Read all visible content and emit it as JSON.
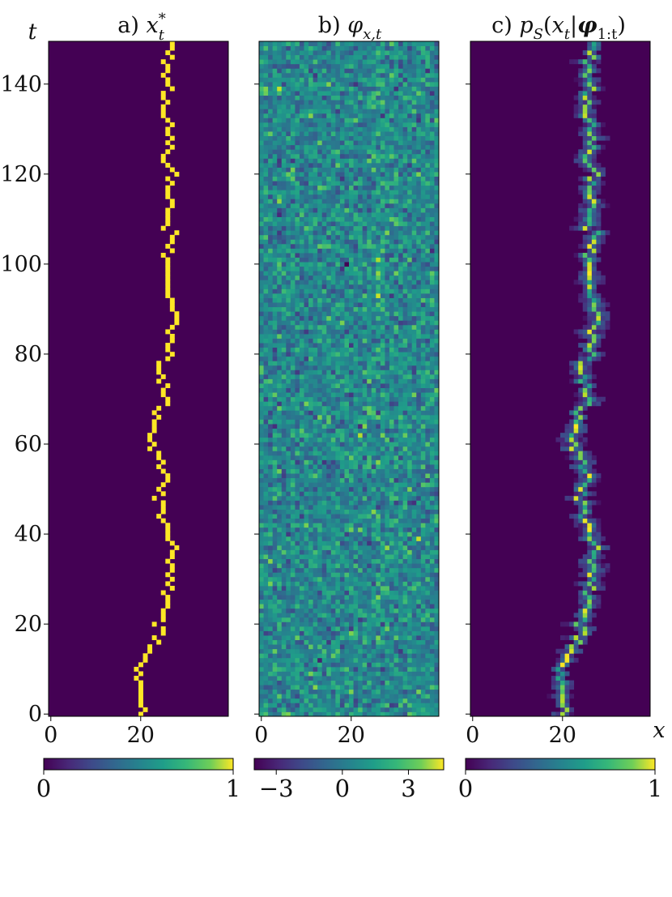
{
  "chart_data": [
    {
      "type": "heatmap",
      "panel": "a",
      "title": "a) x*_t",
      "title_parts": {
        "prefix": "a) ",
        "var": "x",
        "sup": "*",
        "sub": "t"
      },
      "xlabel": "",
      "ylabel": "t",
      "xlim": [
        0,
        40
      ],
      "ylim": [
        0,
        150
      ],
      "xticks": [
        0,
        20
      ],
      "yticks": [
        0,
        20,
        40,
        60,
        80,
        100,
        120,
        140
      ],
      "colormap": "viridis",
      "colorbar": {
        "min": 0,
        "max": 1,
        "ticks": [
          0,
          1
        ],
        "tick_labels": [
          "0",
          "1"
        ]
      },
      "path_keypoints": [
        [
          0,
          20
        ],
        [
          5,
          20
        ],
        [
          7,
          19
        ],
        [
          9,
          20
        ],
        [
          12,
          21
        ],
        [
          15,
          22
        ],
        [
          19,
          24
        ],
        [
          22,
          25
        ],
        [
          25,
          26
        ],
        [
          30,
          26
        ],
        [
          33,
          27
        ],
        [
          37,
          27
        ],
        [
          40,
          26
        ],
        [
          45,
          25
        ],
        [
          49,
          24
        ],
        [
          52,
          26
        ],
        [
          55,
          25
        ],
        [
          60,
          23
        ],
        [
          62,
          22
        ],
        [
          64,
          23
        ],
        [
          67,
          24
        ],
        [
          70,
          25
        ],
        [
          74,
          25
        ],
        [
          77,
          24
        ],
        [
          80,
          26
        ],
        [
          85,
          27
        ],
        [
          88,
          28
        ],
        [
          90,
          27
        ],
        [
          95,
          26
        ],
        [
          100,
          26
        ],
        [
          105,
          27
        ],
        [
          110,
          26
        ],
        [
          115,
          26
        ],
        [
          118,
          26
        ],
        [
          121,
          27
        ],
        [
          123,
          25
        ],
        [
          126,
          26
        ],
        [
          130,
          26
        ],
        [
          135,
          25
        ],
        [
          140,
          26
        ],
        [
          143,
          26
        ],
        [
          146,
          26
        ],
        [
          149,
          27
        ]
      ]
    },
    {
      "type": "heatmap",
      "panel": "b",
      "title": "b) φ_{x,t}",
      "title_parts": {
        "prefix": "b) ",
        "var": "φ",
        "sub": "x,t"
      },
      "xlabel": "",
      "ylabel": "",
      "xlim": [
        0,
        40
      ],
      "ylim": [
        0,
        150
      ],
      "xticks": [
        0,
        20
      ],
      "colormap": "viridis",
      "colorbar": {
        "min": -4,
        "max": 4.6,
        "ticks": [
          -3,
          0,
          3
        ],
        "tick_labels": [
          "−3",
          "0",
          "3"
        ]
      },
      "noise": "random normal field with faint signal along x*_t"
    },
    {
      "type": "heatmap",
      "panel": "c",
      "title": "c) p_S(x_t | φ_{1:t})",
      "title_parts": {
        "prefix": "c) ",
        "p": "p",
        "p_sub": "S",
        "open": "(",
        "x": "x",
        "x_sub": "t",
        "bar": "|",
        "phi": "φ",
        "phi_sub": "1:t",
        "close": ")"
      },
      "xlabel": "x",
      "ylabel": "",
      "xlim": [
        0,
        40
      ],
      "ylim": [
        0,
        150
      ],
      "xticks": [
        0,
        20
      ],
      "colormap": "viridis",
      "colorbar": {
        "min": 0,
        "max": 1,
        "ticks": [
          0,
          1
        ],
        "tick_labels": [
          "0",
          "1"
        ]
      }
    }
  ]
}
